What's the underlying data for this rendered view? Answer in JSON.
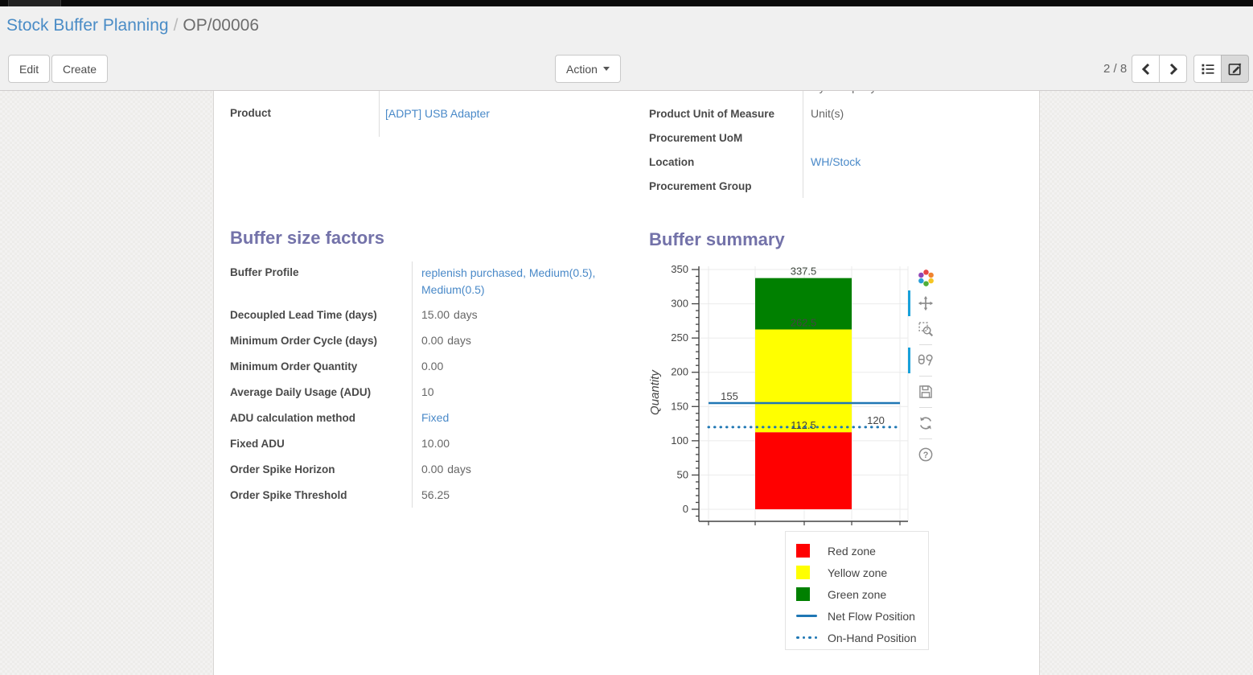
{
  "breadcrumb": {
    "parent": "Stock Buffer Planning",
    "separator": "/",
    "current": "OP/00006"
  },
  "control_panel": {
    "edit_label": "Edit",
    "create_label": "Create",
    "action_label": "Action",
    "pager": "2 / 8"
  },
  "sheet": {
    "clipped_top_value": "My Company",
    "left_group": [
      {
        "label": "Product",
        "value": "[ADPT] USB Adapter",
        "link": true
      }
    ],
    "right_group": [
      {
        "label": "Product Unit of Measure",
        "value": "Unit(s)"
      },
      {
        "label": "Procurement UoM",
        "value": ""
      },
      {
        "label": "Location",
        "value": "WH/Stock",
        "link": true
      },
      {
        "label": "Procurement Group",
        "value": ""
      }
    ],
    "buffer_factors": {
      "title": "Buffer size factors",
      "fields": [
        {
          "label": "Buffer Profile",
          "value": "replenish purchased, Medium(0.5), Medium(0.5)",
          "link": true
        },
        {
          "label": "Decoupled Lead Time (days)",
          "value": "15.00",
          "suffix": "days"
        },
        {
          "label": "Minimum Order Cycle (days)",
          "value": "0.00",
          "suffix": "days"
        },
        {
          "label": "Minimum Order Quantity",
          "value": "0.00"
        },
        {
          "label": "Average Daily Usage (ADU)",
          "value": "10"
        },
        {
          "label": "ADU calculation method",
          "value": "Fixed",
          "link": true
        },
        {
          "label": "Fixed ADU",
          "value": "10.00"
        },
        {
          "label": "Order Spike Horizon",
          "value": "0.00",
          "suffix": "days"
        },
        {
          "label": "Order Spike Threshold",
          "value": "56.25"
        }
      ]
    },
    "buffer_summary": {
      "title": "Buffer summary"
    }
  },
  "chart_data": {
    "type": "bar",
    "title": "",
    "xlabel": "",
    "ylabel": "Quantity",
    "ylim": [
      0,
      350
    ],
    "ytick_step": 50,
    "grid": true,
    "legend_position": "below-right",
    "zones": [
      {
        "name": "Red zone",
        "from": 0,
        "to": 112.5,
        "color": "#ff0000",
        "label": "112.5"
      },
      {
        "name": "Yellow zone",
        "from": 112.5,
        "to": 262.5,
        "color": "#ffff00",
        "label": "262.5"
      },
      {
        "name": "Green zone",
        "from": 262.5,
        "to": 337.5,
        "color": "#008000",
        "label": "337.5"
      }
    ],
    "lines": [
      {
        "name": "Net Flow Position",
        "value": 155,
        "style": "solid",
        "color": "#1f77b4",
        "label": "155",
        "label_side": "left"
      },
      {
        "name": "On-Hand Position",
        "value": 120,
        "style": "dotted",
        "color": "#1f77b4",
        "label": "120",
        "label_side": "right"
      }
    ],
    "legend": [
      "Red zone",
      "Yellow zone",
      "Green zone",
      "Net Flow Position",
      "On-Hand Position"
    ]
  },
  "modebar": {
    "items": [
      {
        "icon": "plotly-logo-icon",
        "active": false,
        "sep_after": false
      },
      {
        "icon": "pan-icon",
        "active": true,
        "sep_after": false
      },
      {
        "icon": "box-zoom-icon",
        "active": false,
        "sep_after": true
      },
      {
        "icon": "hover-compare-icon",
        "active": true,
        "sep_after": true
      },
      {
        "icon": "download-icon",
        "active": false,
        "sep_after": true
      },
      {
        "icon": "reset-icon",
        "active": false,
        "sep_after": true
      },
      {
        "icon": "help-icon",
        "active": false,
        "sep_after": false
      }
    ]
  }
}
